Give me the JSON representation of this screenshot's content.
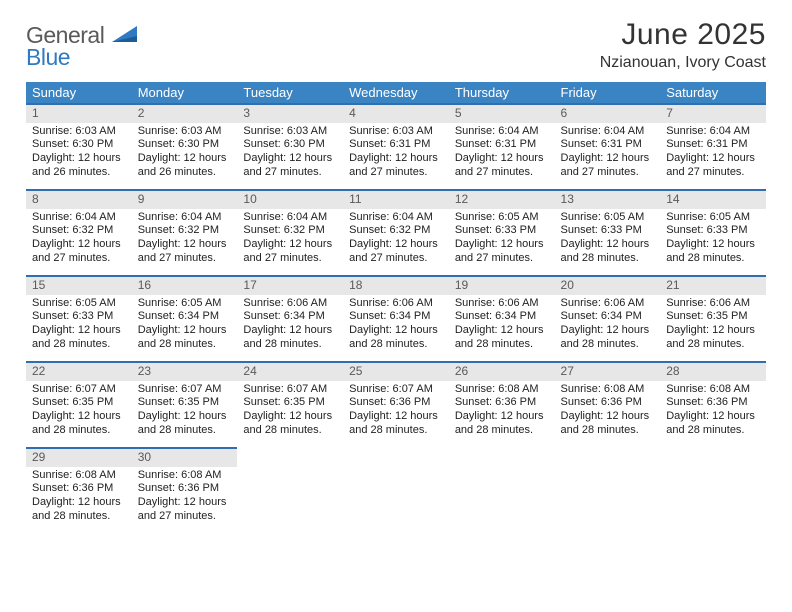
{
  "brand": {
    "general": "General",
    "blue": "Blue"
  },
  "title": "June 2025",
  "location": "Nzianouan, Ivory Coast",
  "colors": {
    "header_bg": "#3b84c4",
    "header_fg": "#ffffff",
    "daybar_bg": "#e7e7e7",
    "daybar_border": "#2f6faf",
    "logo_blue": "#2f7ac0",
    "logo_gray": "#5a5a5a"
  },
  "weekdays": [
    "Sunday",
    "Monday",
    "Tuesday",
    "Wednesday",
    "Thursday",
    "Friday",
    "Saturday"
  ],
  "weeks": [
    [
      {
        "n": "1",
        "sr": "Sunrise: 6:03 AM",
        "ss": "Sunset: 6:30 PM",
        "dl": "Daylight: 12 hours and 26 minutes."
      },
      {
        "n": "2",
        "sr": "Sunrise: 6:03 AM",
        "ss": "Sunset: 6:30 PM",
        "dl": "Daylight: 12 hours and 26 minutes."
      },
      {
        "n": "3",
        "sr": "Sunrise: 6:03 AM",
        "ss": "Sunset: 6:30 PM",
        "dl": "Daylight: 12 hours and 27 minutes."
      },
      {
        "n": "4",
        "sr": "Sunrise: 6:03 AM",
        "ss": "Sunset: 6:31 PM",
        "dl": "Daylight: 12 hours and 27 minutes."
      },
      {
        "n": "5",
        "sr": "Sunrise: 6:04 AM",
        "ss": "Sunset: 6:31 PM",
        "dl": "Daylight: 12 hours and 27 minutes."
      },
      {
        "n": "6",
        "sr": "Sunrise: 6:04 AM",
        "ss": "Sunset: 6:31 PM",
        "dl": "Daylight: 12 hours and 27 minutes."
      },
      {
        "n": "7",
        "sr": "Sunrise: 6:04 AM",
        "ss": "Sunset: 6:31 PM",
        "dl": "Daylight: 12 hours and 27 minutes."
      }
    ],
    [
      {
        "n": "8",
        "sr": "Sunrise: 6:04 AM",
        "ss": "Sunset: 6:32 PM",
        "dl": "Daylight: 12 hours and 27 minutes."
      },
      {
        "n": "9",
        "sr": "Sunrise: 6:04 AM",
        "ss": "Sunset: 6:32 PM",
        "dl": "Daylight: 12 hours and 27 minutes."
      },
      {
        "n": "10",
        "sr": "Sunrise: 6:04 AM",
        "ss": "Sunset: 6:32 PM",
        "dl": "Daylight: 12 hours and 27 minutes."
      },
      {
        "n": "11",
        "sr": "Sunrise: 6:04 AM",
        "ss": "Sunset: 6:32 PM",
        "dl": "Daylight: 12 hours and 27 minutes."
      },
      {
        "n": "12",
        "sr": "Sunrise: 6:05 AM",
        "ss": "Sunset: 6:33 PM",
        "dl": "Daylight: 12 hours and 27 minutes."
      },
      {
        "n": "13",
        "sr": "Sunrise: 6:05 AM",
        "ss": "Sunset: 6:33 PM",
        "dl": "Daylight: 12 hours and 28 minutes."
      },
      {
        "n": "14",
        "sr": "Sunrise: 6:05 AM",
        "ss": "Sunset: 6:33 PM",
        "dl": "Daylight: 12 hours and 28 minutes."
      }
    ],
    [
      {
        "n": "15",
        "sr": "Sunrise: 6:05 AM",
        "ss": "Sunset: 6:33 PM",
        "dl": "Daylight: 12 hours and 28 minutes."
      },
      {
        "n": "16",
        "sr": "Sunrise: 6:05 AM",
        "ss": "Sunset: 6:34 PM",
        "dl": "Daylight: 12 hours and 28 minutes."
      },
      {
        "n": "17",
        "sr": "Sunrise: 6:06 AM",
        "ss": "Sunset: 6:34 PM",
        "dl": "Daylight: 12 hours and 28 minutes."
      },
      {
        "n": "18",
        "sr": "Sunrise: 6:06 AM",
        "ss": "Sunset: 6:34 PM",
        "dl": "Daylight: 12 hours and 28 minutes."
      },
      {
        "n": "19",
        "sr": "Sunrise: 6:06 AM",
        "ss": "Sunset: 6:34 PM",
        "dl": "Daylight: 12 hours and 28 minutes."
      },
      {
        "n": "20",
        "sr": "Sunrise: 6:06 AM",
        "ss": "Sunset: 6:34 PM",
        "dl": "Daylight: 12 hours and 28 minutes."
      },
      {
        "n": "21",
        "sr": "Sunrise: 6:06 AM",
        "ss": "Sunset: 6:35 PM",
        "dl": "Daylight: 12 hours and 28 minutes."
      }
    ],
    [
      {
        "n": "22",
        "sr": "Sunrise: 6:07 AM",
        "ss": "Sunset: 6:35 PM",
        "dl": "Daylight: 12 hours and 28 minutes."
      },
      {
        "n": "23",
        "sr": "Sunrise: 6:07 AM",
        "ss": "Sunset: 6:35 PM",
        "dl": "Daylight: 12 hours and 28 minutes."
      },
      {
        "n": "24",
        "sr": "Sunrise: 6:07 AM",
        "ss": "Sunset: 6:35 PM",
        "dl": "Daylight: 12 hours and 28 minutes."
      },
      {
        "n": "25",
        "sr": "Sunrise: 6:07 AM",
        "ss": "Sunset: 6:36 PM",
        "dl": "Daylight: 12 hours and 28 minutes."
      },
      {
        "n": "26",
        "sr": "Sunrise: 6:08 AM",
        "ss": "Sunset: 6:36 PM",
        "dl": "Daylight: 12 hours and 28 minutes."
      },
      {
        "n": "27",
        "sr": "Sunrise: 6:08 AM",
        "ss": "Sunset: 6:36 PM",
        "dl": "Daylight: 12 hours and 28 minutes."
      },
      {
        "n": "28",
        "sr": "Sunrise: 6:08 AM",
        "ss": "Sunset: 6:36 PM",
        "dl": "Daylight: 12 hours and 28 minutes."
      }
    ],
    [
      {
        "n": "29",
        "sr": "Sunrise: 6:08 AM",
        "ss": "Sunset: 6:36 PM",
        "dl": "Daylight: 12 hours and 28 minutes."
      },
      {
        "n": "30",
        "sr": "Sunrise: 6:08 AM",
        "ss": "Sunset: 6:36 PM",
        "dl": "Daylight: 12 hours and 27 minutes."
      },
      null,
      null,
      null,
      null,
      null
    ]
  ]
}
